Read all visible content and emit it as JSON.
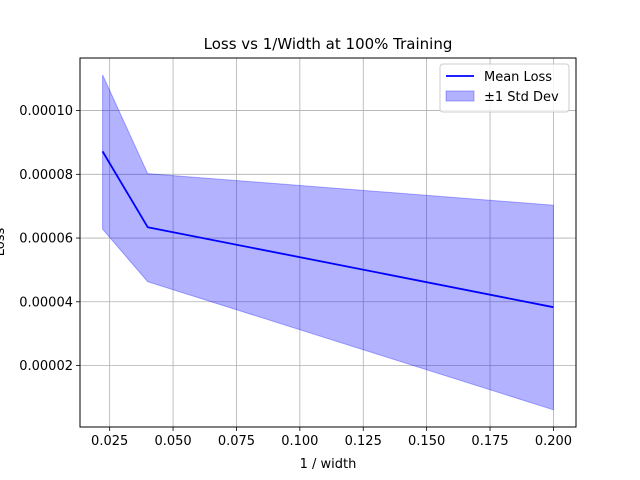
{
  "chart_data": {
    "type": "line",
    "title": "Loss vs 1/Width at 100% Training",
    "xlabel": "1 / width",
    "ylabel": "Loss",
    "xlim": [
      0.0133,
      0.2089
    ],
    "ylim": [
      7e-07,
      0.0001165
    ],
    "xticks": [
      0.025,
      0.05,
      0.075,
      0.1,
      0.125,
      0.15,
      0.175,
      0.2
    ],
    "xtick_labels": [
      "0.025",
      "0.050",
      "0.075",
      "0.100",
      "0.125",
      "0.150",
      "0.175",
      "0.200"
    ],
    "yticks": [
      2e-05,
      4e-05,
      6e-05,
      8e-05,
      0.0001
    ],
    "ytick_labels": [
      "0.00002",
      "0.00004",
      "0.00006",
      "0.00008",
      "0.00010"
    ],
    "grid": true,
    "legend_position": "top-right",
    "x": [
      0.0222,
      0.04,
      0.2
    ],
    "series": [
      {
        "name": "Mean Loss",
        "values": [
          8.72e-05,
          6.34e-05,
          3.83e-05
        ],
        "color": "#0000ff"
      }
    ],
    "band": {
      "name": "±1 Std Dev",
      "lower": [
        6.28e-05,
        4.63e-05,
        6.1e-06
      ],
      "upper": [
        0.0001112,
        8.02e-05,
        7.03e-05
      ],
      "color": "#0000ff",
      "alpha": 0.3
    }
  }
}
